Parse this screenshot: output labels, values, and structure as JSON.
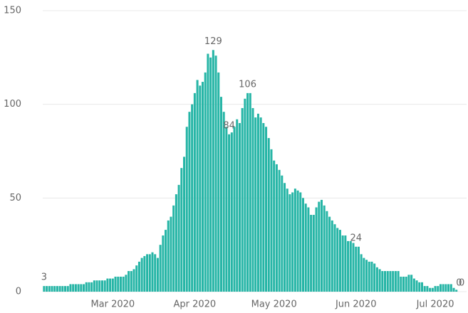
{
  "chart_data": {
    "type": "bar",
    "categories": [
      null,
      null,
      null,
      null,
      null,
      null,
      null,
      null,
      null,
      null,
      null,
      null,
      null,
      null,
      null,
      null,
      null,
      null,
      null,
      null,
      null,
      null,
      null,
      null,
      null,
      null,
      "Mar 2020",
      null,
      null,
      null,
      null,
      null,
      null,
      null,
      null,
      null,
      null,
      null,
      null,
      null,
      null,
      null,
      null,
      null,
      null,
      null,
      null,
      null,
      null,
      null,
      null,
      null,
      null,
      null,
      null,
      null,
      null,
      "Apr 2020",
      null,
      null,
      null,
      null,
      null,
      null,
      null,
      null,
      null,
      null,
      null,
      null,
      null,
      null,
      null,
      null,
      null,
      null,
      null,
      null,
      null,
      null,
      null,
      null,
      null,
      null,
      null,
      null,
      null,
      "May 2020",
      null,
      null,
      null,
      null,
      null,
      null,
      null,
      null,
      null,
      null,
      null,
      null,
      null,
      null,
      null,
      null,
      null,
      null,
      null,
      null,
      null,
      null,
      null,
      null,
      null,
      null,
      null,
      null,
      null,
      null,
      "Jun 2020",
      null,
      null,
      null,
      null,
      null,
      null,
      null,
      null,
      null,
      null,
      null,
      null,
      null,
      null,
      null,
      null,
      null,
      null,
      null,
      null,
      null,
      null,
      null,
      null,
      null,
      null,
      null,
      null,
      null,
      "Jul 2020",
      null,
      null,
      null,
      null,
      null,
      null,
      null,
      null,
      null,
      null
    ],
    "values": [
      3,
      3,
      3,
      3,
      3,
      3,
      3,
      3,
      3,
      3,
      4,
      4,
      4,
      4,
      4,
      4,
      5,
      5,
      5,
      6,
      6,
      6,
      6,
      6,
      7,
      7,
      7,
      8,
      8,
      8,
      8,
      9,
      11,
      11,
      12,
      14,
      16,
      18,
      19,
      20,
      20,
      21,
      20,
      18,
      25,
      30,
      33,
      38,
      40,
      46,
      52,
      57,
      66,
      72,
      88,
      96,
      100,
      106,
      113,
      110,
      112,
      117,
      127,
      125,
      129,
      126,
      117,
      104,
      96,
      88,
      84,
      85,
      88,
      92,
      90,
      98,
      103,
      106,
      106,
      98,
      93,
      95,
      93,
      90,
      88,
      82,
      76,
      70,
      68,
      65,
      62,
      58,
      55,
      52,
      53,
      55,
      54,
      53,
      50,
      47,
      45,
      41,
      41,
      45,
      48,
      49,
      46,
      43,
      40,
      38,
      36,
      34,
      33,
      30,
      30,
      27,
      27,
      26,
      24,
      24,
      20,
      18,
      17,
      16,
      16,
      15,
      13,
      12,
      11,
      11,
      11,
      11,
      11,
      11,
      11,
      8,
      8,
      8,
      9,
      9,
      7,
      6,
      5,
      5,
      3,
      3,
      2,
      2,
      3,
      3,
      4,
      4,
      4,
      4,
      4,
      2,
      1,
      0,
      0
    ],
    "value_labels": [
      "3",
      null,
      null,
      null,
      null,
      null,
      null,
      null,
      null,
      null,
      null,
      null,
      null,
      null,
      null,
      null,
      null,
      null,
      null,
      null,
      null,
      null,
      null,
      null,
      null,
      null,
      null,
      null,
      null,
      null,
      null,
      null,
      null,
      null,
      null,
      null,
      null,
      null,
      null,
      null,
      null,
      null,
      null,
      null,
      null,
      null,
      null,
      null,
      null,
      null,
      null,
      null,
      null,
      null,
      null,
      null,
      null,
      null,
      null,
      null,
      null,
      null,
      null,
      null,
      "129",
      null,
      null,
      null,
      null,
      null,
      "84",
      null,
      null,
      null,
      null,
      null,
      null,
      "106",
      null,
      null,
      null,
      null,
      null,
      null,
      null,
      null,
      null,
      null,
      null,
      null,
      null,
      null,
      null,
      null,
      null,
      null,
      null,
      null,
      null,
      null,
      null,
      null,
      null,
      null,
      null,
      null,
      null,
      null,
      null,
      null,
      null,
      null,
      null,
      null,
      null,
      null,
      null,
      null,
      "24",
      null,
      null,
      null,
      null,
      null,
      null,
      null,
      null,
      null,
      null,
      null,
      null,
      null,
      null,
      null,
      null,
      null,
      null,
      null,
      null,
      null,
      null,
      null,
      null,
      null,
      null,
      null,
      null,
      null,
      null,
      null,
      null,
      null,
      null,
      null,
      null,
      null,
      null,
      "0",
      "0"
    ],
    "color": "#26b5a6",
    "ylim": [
      0,
      150
    ],
    "yticks": [
      0,
      50,
      100,
      150
    ],
    "grid": true
  }
}
